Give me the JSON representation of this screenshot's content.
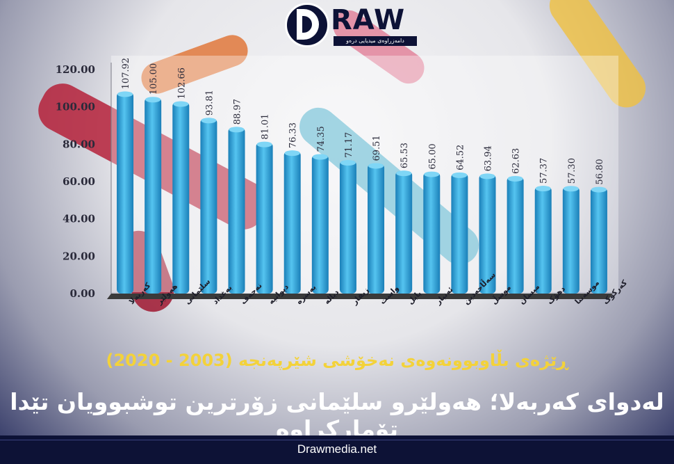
{
  "brand": {
    "name": "RAW",
    "tagline": "دامەزراوەی میدیایی درەو"
  },
  "website": "Drawmedia.net",
  "subtitle": "ڕێژەی بڵاوبوونەوەی نەخۆشی شێرپەنجە (2003 - 2020)",
  "headline": "لەدوای کەربەلا؛ هەولێرو سلێمانی زۆرترین توشبوویان تێدا تۆمارکراوە",
  "colors": {
    "bar": "#2ea9e0",
    "bar_dark": "#1a7fb8",
    "subtitle": "#f3d23a",
    "background_band": "#1c2350"
  },
  "chart_data": {
    "type": "bar",
    "categories": [
      "کەربەلا",
      "هەولێر",
      "سلێمانی",
      "بەغداد",
      "نەجەف",
      "دیوانیە",
      "بەسرە",
      "دیالە",
      "زیقار",
      "واست",
      "بابل",
      "ئەنبار",
      "سەڵاحەدین",
      "موسڵ",
      "میسان",
      "دهۆک",
      "موسەننا",
      "کەرکوک"
    ],
    "values": [
      107.92,
      105.0,
      102.66,
      93.81,
      88.97,
      81.01,
      76.33,
      74.35,
      71.17,
      69.51,
      65.53,
      65.0,
      64.52,
      63.94,
      62.63,
      57.37,
      57.3,
      56.8
    ],
    "value_labels": [
      "107.92",
      "105.00",
      "102.66",
      "93.81",
      "88.97",
      "81.01",
      "76.33",
      "74.35",
      "71.17",
      "69.51",
      "65.53",
      "65.00",
      "64.52",
      "63.94",
      "62.63",
      "57.37",
      "57.30",
      "56.80"
    ],
    "yticks": [
      "0.00",
      "20.00",
      "40.00",
      "60.00",
      "80.00",
      "100.00",
      "120.00"
    ],
    "ylim": [
      0,
      120
    ],
    "grid": false
  }
}
